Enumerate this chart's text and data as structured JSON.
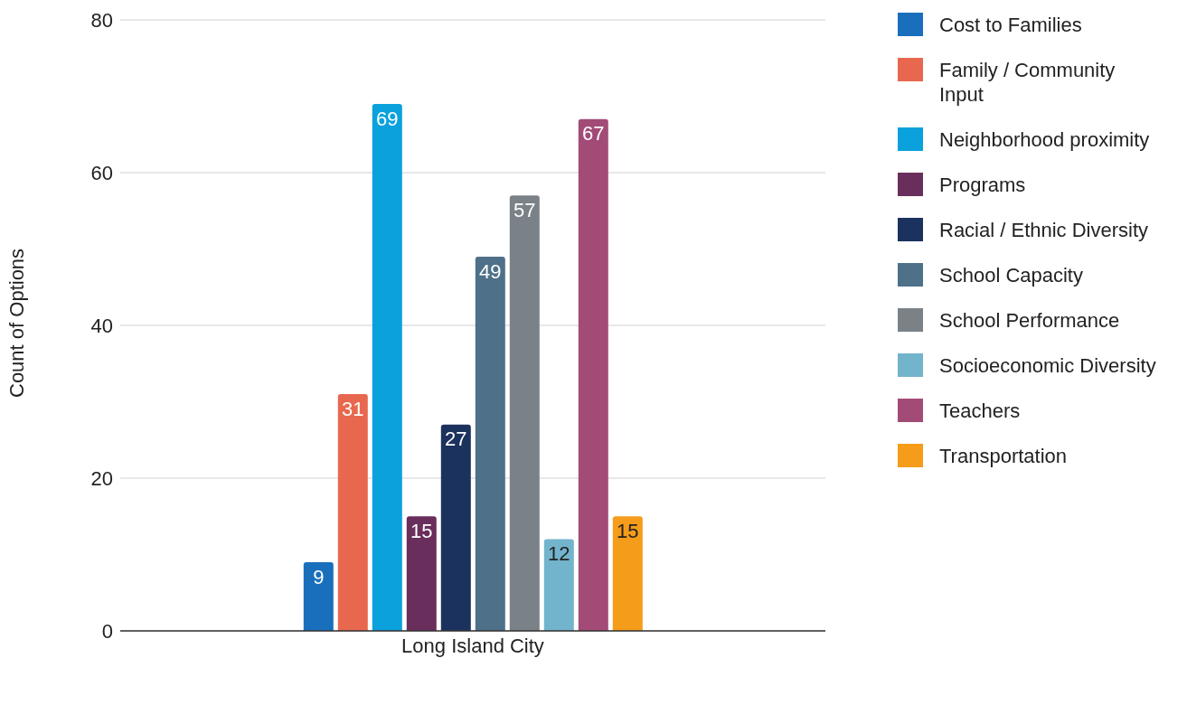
{
  "chart_data": {
    "type": "bar",
    "categories": [
      "Long Island City"
    ],
    "ylabel": "Count of Options",
    "series": [
      {
        "name": "Cost to Families",
        "color": "#1a6fbd",
        "values": [
          9
        ]
      },
      {
        "name": "Family / Community Input",
        "color": "#e8684f",
        "values": [
          31
        ]
      },
      {
        "name": "Neighborhood proximity",
        "color": "#0aa1dd",
        "values": [
          69
        ]
      },
      {
        "name": "Programs",
        "color": "#6a2e5c",
        "values": [
          15
        ]
      },
      {
        "name": "Racial / Ethnic Diversity",
        "color": "#1c325e",
        "values": [
          27
        ]
      },
      {
        "name": "School Capacity",
        "color": "#4e7089",
        "values": [
          49
        ]
      },
      {
        "name": "School Performance",
        "color": "#7a8288",
        "values": [
          57
        ]
      },
      {
        "name": "Socioeconomic Diversity",
        "color": "#72b4cc",
        "values": [
          12
        ]
      },
      {
        "name": "Teachers",
        "color": "#a34b77",
        "values": [
          67
        ]
      },
      {
        "name": "Transportation",
        "color": "#f59c1a",
        "values": [
          15
        ]
      }
    ],
    "ylim": [
      0,
      80
    ],
    "yticks": [
      0,
      20,
      40,
      60,
      80
    ],
    "grid": "y",
    "legend": "right",
    "data_labels": true
  }
}
